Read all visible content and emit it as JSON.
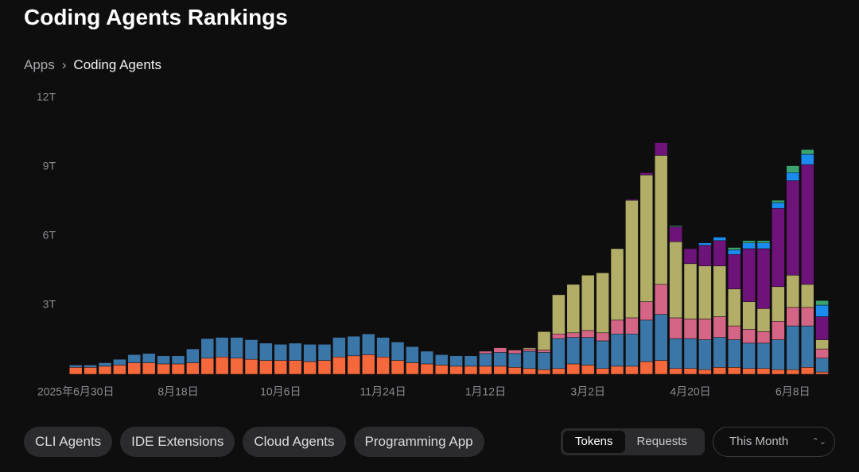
{
  "header": {
    "title": "Coding Agents Rankings"
  },
  "breadcrumb": [
    "Apps",
    "Coding Agents"
  ],
  "filters": [
    "CLI Agents",
    "IDE Extensions",
    "Cloud Agents",
    "Programming App"
  ],
  "toggle": [
    "Tokens",
    "Requests"
  ],
  "dropdown": "This Month",
  "chart_data": {
    "type": "stacked_bar",
    "categories": [
      "2025年6月30日",
      null,
      null,
      null,
      null,
      null,
      null,
      "8月18日",
      null,
      null,
      null,
      null,
      null,
      null,
      "10月6日",
      null,
      null,
      null,
      null,
      null,
      null,
      "11月24日",
      null,
      null,
      null,
      null,
      null,
      null,
      "1月12日",
      null,
      null,
      null,
      null,
      null,
      null,
      "3月2日",
      null,
      null,
      null,
      null,
      null,
      null,
      "4月20日",
      null,
      null,
      null,
      null,
      null,
      null,
      "6月8日",
      null,
      null
    ],
    "ylim": [
      0,
      12
    ],
    "yticks": [
      {
        "value": 3,
        "label": "3T"
      },
      {
        "value": 6,
        "label": "6T"
      },
      {
        "value": 9,
        "label": "9T"
      },
      {
        "value": 12,
        "label": "12T"
      }
    ],
    "series": [
      {
        "color": "#f4683b",
        "values": [
          0.3,
          0.3,
          0.35,
          0.4,
          0.5,
          0.5,
          0.45,
          0.45,
          0.5,
          0.7,
          0.75,
          0.7,
          0.65,
          0.6,
          0.6,
          0.6,
          0.55,
          0.6,
          0.75,
          0.8,
          0.85,
          0.75,
          0.6,
          0.5,
          0.45,
          0.4,
          0.35,
          0.35,
          0.35,
          0.35,
          0.3,
          0.25,
          0.2,
          0.25,
          0.45,
          0.4,
          0.25,
          0.35,
          0.35,
          0.55,
          0.6,
          0.25,
          0.25,
          0.2,
          0.3,
          0.3,
          0.25,
          0.25,
          0.2,
          0.2,
          0.3,
          0.1
        ]
      },
      {
        "color": "#3b76a8",
        "values": [
          0.1,
          0.1,
          0.15,
          0.25,
          0.35,
          0.4,
          0.35,
          0.35,
          0.6,
          0.85,
          0.85,
          0.9,
          0.85,
          0.75,
          0.7,
          0.75,
          0.75,
          0.7,
          0.85,
          0.85,
          0.9,
          0.85,
          0.8,
          0.7,
          0.55,
          0.45,
          0.45,
          0.45,
          0.55,
          0.6,
          0.6,
          0.75,
          0.75,
          1.3,
          1.15,
          1.2,
          1.2,
          1.4,
          1.4,
          1.8,
          2.0,
          1.3,
          1.3,
          1.3,
          1.3,
          1.2,
          1.1,
          1.1,
          1.3,
          1.9,
          1.8,
          0.6
        ]
      },
      {
        "color": "#d56585",
        "values": [
          0,
          0,
          0,
          0,
          0,
          0,
          0,
          0,
          0,
          0,
          0,
          0,
          0,
          0,
          0,
          0,
          0,
          0,
          0,
          0,
          0,
          0,
          0,
          0,
          0,
          0,
          0,
          0,
          0.1,
          0.2,
          0.15,
          0.1,
          0.1,
          0.2,
          0.2,
          0.3,
          0.35,
          0.6,
          0.7,
          0.8,
          1.3,
          0.9,
          0.85,
          0.9,
          0.9,
          0.6,
          0.6,
          0.5,
          0.8,
          0.8,
          0.8,
          0.4
        ]
      },
      {
        "color": "#b2ad67",
        "values": [
          0,
          0,
          0,
          0,
          0,
          0,
          0,
          0,
          0,
          0,
          0,
          0,
          0,
          0,
          0,
          0,
          0,
          0,
          0,
          0,
          0,
          0,
          0,
          0,
          0,
          0,
          0,
          0,
          0,
          0,
          0,
          0.05,
          0.8,
          1.7,
          2.1,
          2.4,
          2.6,
          3.1,
          5.1,
          5.5,
          5.6,
          3.3,
          2.4,
          2.3,
          2.2,
          1.6,
          1.2,
          1.0,
          1.5,
          1.4,
          1.0,
          0.4
        ]
      },
      {
        "color": "#6e1379",
        "values": [
          0,
          0,
          0,
          0,
          0,
          0,
          0,
          0,
          0,
          0,
          0,
          0,
          0,
          0,
          0,
          0,
          0,
          0,
          0,
          0,
          0,
          0,
          0,
          0,
          0,
          0,
          0,
          0,
          0,
          0,
          0,
          0,
          0,
          0,
          0,
          0,
          0,
          0,
          0.05,
          0.1,
          0.55,
          0.65,
          0.65,
          0.9,
          1.1,
          1.5,
          2.3,
          2.6,
          3.4,
          4.1,
          5.2,
          1.0
        ]
      },
      {
        "color": "#1a8cf0",
        "values": [
          0,
          0,
          0,
          0,
          0,
          0,
          0,
          0,
          0,
          0,
          0,
          0,
          0,
          0,
          0,
          0,
          0,
          0,
          0,
          0,
          0,
          0,
          0,
          0,
          0,
          0,
          0,
          0,
          0,
          0,
          0,
          0,
          0,
          0,
          0,
          0,
          0,
          0,
          0,
          0,
          0,
          0,
          0,
          0.1,
          0.15,
          0.2,
          0.25,
          0.25,
          0.25,
          0.35,
          0.45,
          0.5
        ]
      },
      {
        "color": "#3aa36f",
        "values": [
          0,
          0,
          0,
          0,
          0,
          0,
          0,
          0,
          0,
          0,
          0,
          0,
          0,
          0,
          0,
          0,
          0,
          0,
          0,
          0,
          0,
          0,
          0,
          0,
          0,
          0,
          0,
          0,
          0,
          0,
          0,
          0,
          0,
          0,
          0,
          0,
          0,
          0,
          0,
          0,
          0,
          0.05,
          0,
          0,
          0,
          0.1,
          0.1,
          0.1,
          0.1,
          0.3,
          0.2,
          0.2
        ]
      }
    ]
  }
}
